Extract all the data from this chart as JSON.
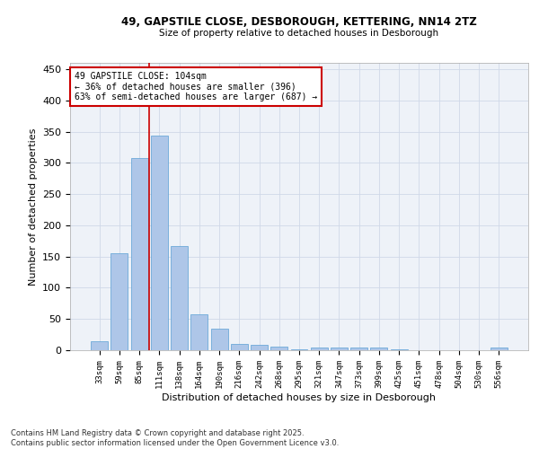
{
  "title_line1": "49, GAPSTILE CLOSE, DESBOROUGH, KETTERING, NN14 2TZ",
  "title_line2": "Size of property relative to detached houses in Desborough",
  "xlabel": "Distribution of detached houses by size in Desborough",
  "ylabel": "Number of detached properties",
  "categories": [
    "33sqm",
    "59sqm",
    "85sqm",
    "111sqm",
    "138sqm",
    "164sqm",
    "190sqm",
    "216sqm",
    "242sqm",
    "268sqm",
    "295sqm",
    "321sqm",
    "347sqm",
    "373sqm",
    "399sqm",
    "425sqm",
    "451sqm",
    "478sqm",
    "504sqm",
    "530sqm",
    "556sqm"
  ],
  "values": [
    15,
    155,
    308,
    343,
    167,
    57,
    35,
    10,
    8,
    6,
    2,
    5,
    5,
    4,
    4,
    2,
    0,
    0,
    0,
    0,
    4
  ],
  "bar_color": "#aec6e8",
  "bar_edge_color": "#5a9fd4",
  "annotation_text_line1": "49 GAPSTILE CLOSE: 104sqm",
  "annotation_text_line2": "← 36% of detached houses are smaller (396)",
  "annotation_text_line3": "63% of semi-detached houses are larger (687) →",
  "annotation_box_color": "#ffffff",
  "annotation_box_edge_color": "#cc0000",
  "vline_color": "#cc0000",
  "vline_x": 2.5,
  "ylim": [
    0,
    460
  ],
  "yticks": [
    0,
    50,
    100,
    150,
    200,
    250,
    300,
    350,
    400,
    450
  ],
  "grid_color": "#d0d8e8",
  "bg_color": "#eef2f8",
  "footnote_line1": "Contains HM Land Registry data © Crown copyright and database right 2025.",
  "footnote_line2": "Contains public sector information licensed under the Open Government Licence v3.0."
}
